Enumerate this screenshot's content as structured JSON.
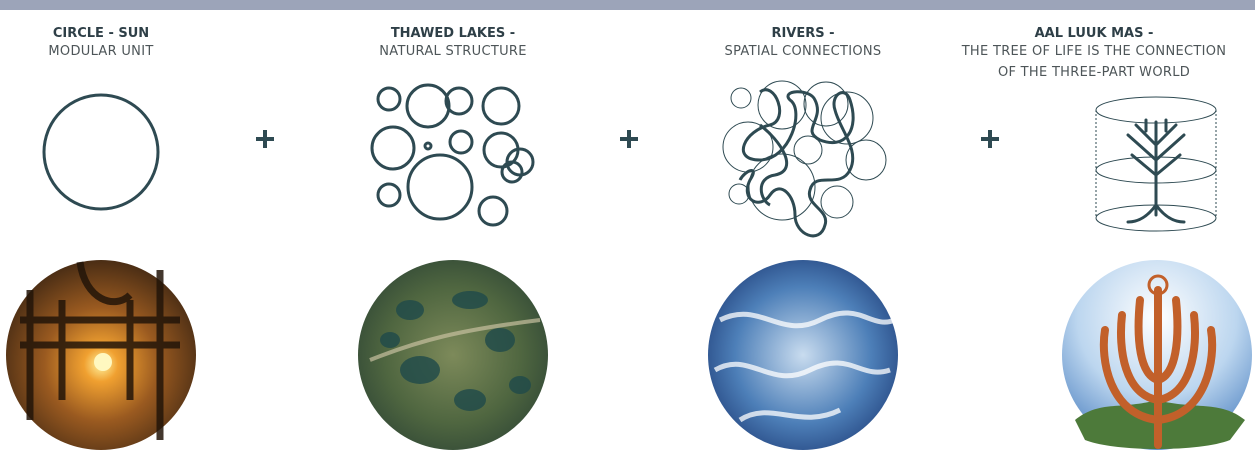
{
  "columns": [
    {
      "title": "CIRCLE - SUN",
      "subtitle": [
        "MODULAR UNIT"
      ]
    },
    {
      "title": "THAWED LAKES -",
      "subtitle": [
        "NATURAL STRUCTURE"
      ]
    },
    {
      "title": "RIVERS -",
      "subtitle": [
        "SPATIAL CONNECTIONS"
      ]
    },
    {
      "title": "AAL LUUK MAS -",
      "subtitle": [
        "THE TREE OF LIFE IS THE CONNECTION",
        "OF THE THREE-PART WORLD"
      ]
    }
  ]
}
